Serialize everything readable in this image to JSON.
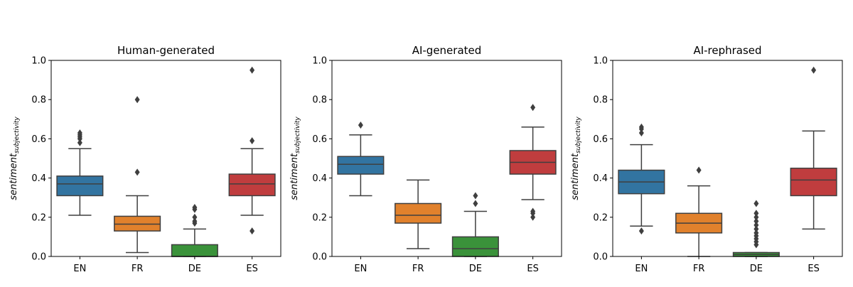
{
  "colors": {
    "EN": "#3274a1",
    "FR": "#e1812c",
    "DE": "#3a923a",
    "ES": "#c03d3e",
    "line": "#3f3f3f",
    "axis": "#000000"
  },
  "chart_data": [
    {
      "type": "box",
      "title": "Human-generated",
      "ylabel_main": "sentiment",
      "ylabel_sub": "subjectivity",
      "ylim": [
        0,
        1
      ],
      "yticks": [
        "0.0",
        "0.2",
        "0.4",
        "0.6",
        "0.8",
        "1.0"
      ],
      "categories": [
        "EN",
        "FR",
        "DE",
        "ES"
      ],
      "boxes": [
        {
          "label": "EN",
          "whislo": 0.21,
          "q1": 0.31,
          "med": 0.37,
          "q3": 0.41,
          "whishi": 0.55,
          "fliers": [
            0.58,
            0.6,
            0.61,
            0.62,
            0.63
          ]
        },
        {
          "label": "FR",
          "whislo": 0.02,
          "q1": 0.13,
          "med": 0.165,
          "q3": 0.205,
          "whishi": 0.31,
          "fliers": [
            0.43,
            0.8
          ]
        },
        {
          "label": "DE",
          "whislo": 0.0,
          "q1": 0.0,
          "med": 0.0,
          "q3": 0.06,
          "whishi": 0.14,
          "fliers": [
            0.17,
            0.18,
            0.2,
            0.24,
            0.25
          ]
        },
        {
          "label": "ES",
          "whislo": 0.21,
          "q1": 0.31,
          "med": 0.37,
          "q3": 0.42,
          "whishi": 0.55,
          "fliers": [
            0.13,
            0.59,
            0.95
          ]
        }
      ]
    },
    {
      "type": "box",
      "title": "AI-generated",
      "ylabel_main": "sentiment",
      "ylabel_sub": "subjectivity",
      "ylim": [
        0,
        1
      ],
      "yticks": [
        "0.0",
        "0.2",
        "0.4",
        "0.6",
        "0.8",
        "1.0"
      ],
      "categories": [
        "EN",
        "FR",
        "DE",
        "ES"
      ],
      "boxes": [
        {
          "label": "EN",
          "whislo": 0.31,
          "q1": 0.42,
          "med": 0.47,
          "q3": 0.51,
          "whishi": 0.62,
          "fliers": [
            0.67
          ]
        },
        {
          "label": "FR",
          "whislo": 0.04,
          "q1": 0.17,
          "med": 0.21,
          "q3": 0.27,
          "whishi": 0.39,
          "fliers": []
        },
        {
          "label": "DE",
          "whislo": 0.0,
          "q1": 0.0,
          "med": 0.04,
          "q3": 0.1,
          "whishi": 0.23,
          "fliers": [
            0.27,
            0.31
          ]
        },
        {
          "label": "ES",
          "whislo": 0.29,
          "q1": 0.42,
          "med": 0.48,
          "q3": 0.54,
          "whishi": 0.66,
          "fliers": [
            0.2,
            0.22,
            0.23,
            0.76
          ]
        }
      ]
    },
    {
      "type": "box",
      "title": "AI-rephrased",
      "ylabel_main": "sentiment",
      "ylabel_sub": "subjectivity",
      "ylim": [
        0,
        1
      ],
      "yticks": [
        "0.0",
        "0.2",
        "0.4",
        "0.6",
        "0.8",
        "1.0"
      ],
      "categories": [
        "EN",
        "FR",
        "DE",
        "ES"
      ],
      "boxes": [
        {
          "label": "EN",
          "whislo": 0.155,
          "q1": 0.32,
          "med": 0.38,
          "q3": 0.44,
          "whishi": 0.57,
          "fliers": [
            0.13,
            0.63,
            0.65,
            0.66
          ]
        },
        {
          "label": "FR",
          "whislo": 0.0,
          "q1": 0.12,
          "med": 0.17,
          "q3": 0.22,
          "whishi": 0.36,
          "fliers": [
            0.44
          ]
        },
        {
          "label": "DE",
          "whislo": 0.0,
          "q1": 0.0,
          "med": 0.01,
          "q3": 0.02,
          "whishi": 0.02,
          "fliers": [
            0.06,
            0.075,
            0.09,
            0.105,
            0.12,
            0.14,
            0.16,
            0.18,
            0.2,
            0.22,
            0.27
          ]
        },
        {
          "label": "ES",
          "whislo": 0.14,
          "q1": 0.31,
          "med": 0.39,
          "q3": 0.45,
          "whishi": 0.64,
          "fliers": [
            0.95
          ]
        }
      ]
    }
  ]
}
